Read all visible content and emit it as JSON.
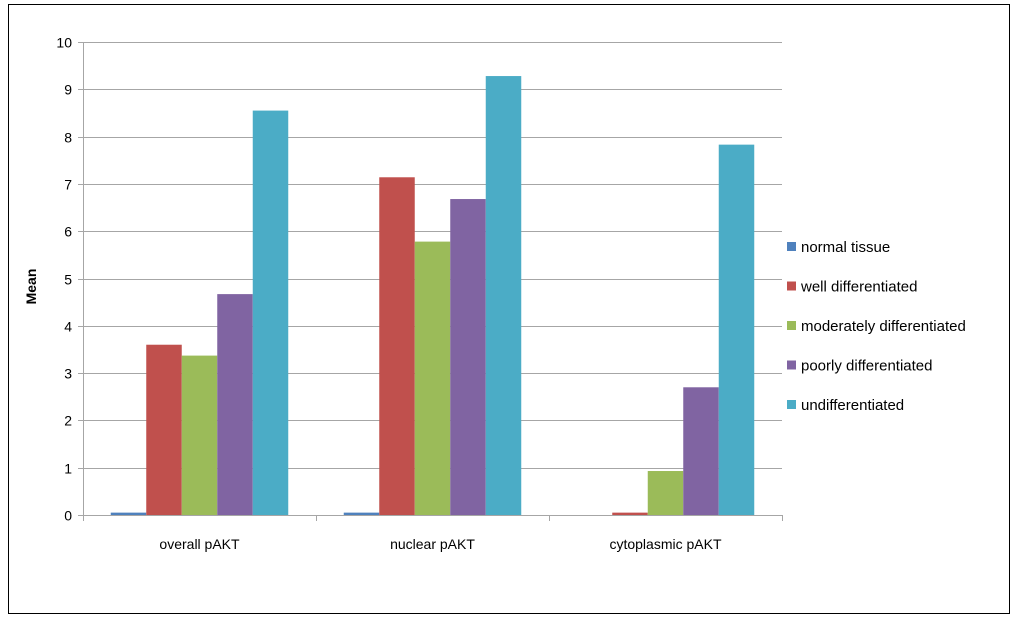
{
  "chart_data": {
    "type": "bar",
    "title": "",
    "xlabel": "",
    "ylabel": "Mean",
    "ylim": [
      0,
      10
    ],
    "yticks": [
      0,
      1,
      2,
      3,
      4,
      5,
      6,
      7,
      8,
      9,
      10
    ],
    "grid": true,
    "legend_position": "right",
    "categories": [
      "overall pAKT",
      "nuclear pAKT",
      "cytoplasmic pAKT"
    ],
    "series": [
      {
        "name": "normal tissue",
        "color": "#4f81bd",
        "values": [
          0.05,
          0.05,
          0.0
        ]
      },
      {
        "name": "well differentiated",
        "color": "#c0504d",
        "values": [
          3.6,
          7.14,
          0.05
        ]
      },
      {
        "name": "moderately differentiated",
        "color": "#9bbb59",
        "values": [
          3.37,
          5.78,
          0.93
        ]
      },
      {
        "name": "poorly differentiated",
        "color": "#8064a2",
        "values": [
          4.67,
          6.68,
          2.7
        ]
      },
      {
        "name": "undifferentiated",
        "color": "#4bacc6",
        "values": [
          8.55,
          9.28,
          7.83
        ]
      }
    ]
  }
}
